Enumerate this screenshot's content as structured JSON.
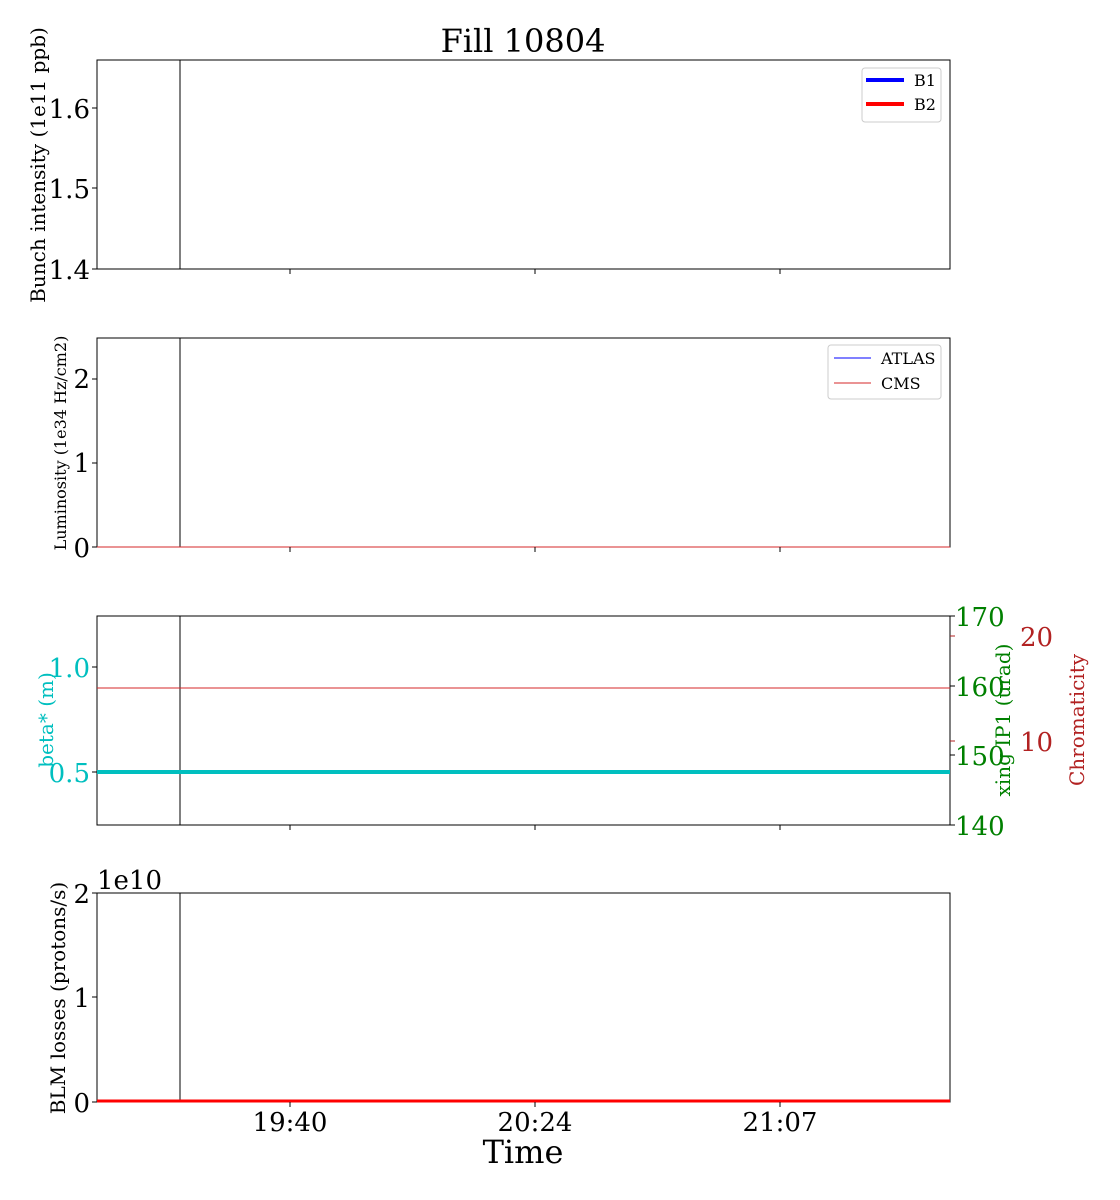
{
  "figure": {
    "title": "Fill 10804",
    "xlabel": "Time",
    "colors": {
      "axis": "#000000",
      "b1": "#0000ff",
      "b2": "#ff0000",
      "cms": "#d62728",
      "beta": "#00bfbf",
      "xing": "#008000",
      "chroma": "#b22222"
    }
  },
  "chart_data": [
    {
      "type": "line",
      "ylabel": "Bunch intensity (1e11 ppb)",
      "ylim": [
        1.4,
        1.66
      ],
      "yticks": [
        "1.4",
        "1.5",
        "1.6"
      ],
      "xticks": [
        "19:40",
        "20:24",
        "21:07"
      ],
      "vline": "marker",
      "legend_position": "top-right",
      "series": [
        {
          "name": "B1",
          "color": "#0000ff",
          "values": []
        },
        {
          "name": "B2",
          "color": "#ff0000",
          "values": []
        }
      ]
    },
    {
      "type": "line",
      "ylabel": "Luminosity (1e34 Hz/cm2)",
      "ylim": [
        0,
        2.5
      ],
      "yticks": [
        "0",
        "1",
        "2"
      ],
      "xticks": [
        "19:40",
        "20:24",
        "21:07"
      ],
      "legend_position": "top-right",
      "series": [
        {
          "name": "ATLAS",
          "color": "#0000ff",
          "values": [
            0,
            0
          ]
        },
        {
          "name": "CMS",
          "color": "#d62728",
          "values": [
            0,
            0
          ]
        }
      ]
    },
    {
      "type": "line",
      "ylabel": "beta* (m)",
      "ylim": [
        0.25,
        1.25
      ],
      "yticks": [
        "0.5",
        "1.0"
      ],
      "right_axes": [
        {
          "label": "xing IP1 (urad)",
          "ylim": [
            140,
            170
          ],
          "yticks": [
            "140",
            "150",
            "160",
            "170"
          ]
        },
        {
          "label": "Chromaticity",
          "ylim": [
            0,
            24
          ],
          "yticks": [
            "10",
            "20"
          ]
        }
      ],
      "series": [
        {
          "color": "#00bfbf",
          "axis": "beta",
          "values": [
            0.5,
            0.5
          ]
        },
        {
          "color": "#d62728",
          "axis": "xing",
          "values": [
            160,
            160
          ]
        }
      ]
    },
    {
      "type": "line",
      "ylabel": "BLM losses (protons/s)",
      "offset_text": "1e10",
      "ylim": [
        0,
        2
      ],
      "yticks": [
        "0",
        "1",
        "2"
      ],
      "xticks": [
        "19:40",
        "20:24",
        "21:07"
      ],
      "series": [
        {
          "color": "#ff0000",
          "values": [
            0,
            0
          ]
        }
      ]
    }
  ]
}
